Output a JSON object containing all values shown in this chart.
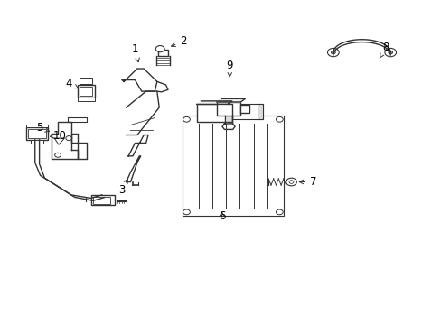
{
  "background_color": "#ffffff",
  "line_color": "#333333",
  "line_width": 1.0,
  "label_fontsize": 8.5,
  "fig_width": 4.89,
  "fig_height": 3.6,
  "dpi": 100
}
